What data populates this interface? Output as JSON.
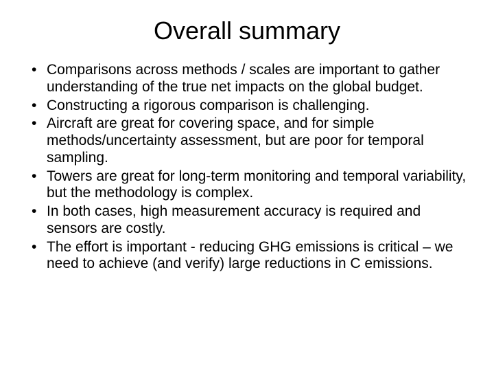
{
  "slide": {
    "title": "Overall summary",
    "title_fontsize": 36,
    "body_fontsize": 21,
    "text_color": "#000000",
    "background_color": "#ffffff",
    "font_family": "Arial",
    "bullets": [
      "Comparisons across methods / scales are important to gather understanding of the true net impacts on the global budget.",
      "Constructing a rigorous comparison is challenging.",
      "Aircraft are great for covering space, and for simple methods/uncertainty assessment, but are poor for temporal sampling.",
      "Towers are great for long-term monitoring and temporal variability, but the methodology is complex.",
      "In both cases, high measurement accuracy is required and sensors are costly.",
      "The effort is important - reducing GHG emissions is critical – we need to achieve (and verify) large reductions in C emissions."
    ]
  }
}
